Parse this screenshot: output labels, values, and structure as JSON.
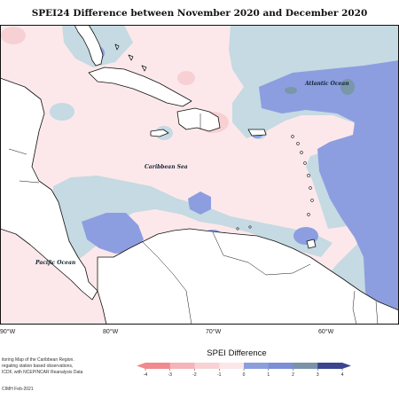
{
  "title": "SPEI24 Difference between November 2020 and December 2020",
  "map": {
    "labels": {
      "atlantic": "Atlantic Ocean",
      "caribbean": "Caribbean Sea",
      "pacific": "Pacific Ocean"
    },
    "longitude_ticks": [
      "90°W",
      "80°W",
      "70°W",
      "60°W"
    ]
  },
  "credits": {
    "line1": "itoring Map of the Caribbean Region.",
    "line2": "regating station based observations,",
    "line3": "ICDF, with NCEP/NCAR Reanalysis Data",
    "line4": "CIMH Feb-2021"
  },
  "legend": {
    "title": "SPEI Difference",
    "ticks": [
      "-4",
      "-3",
      "-2",
      "-1",
      "0",
      "1",
      "2",
      "3",
      "4"
    ],
    "colors": [
      "#f08a8e",
      "#f4b4b8",
      "#f8d2d5",
      "#fbe6e8",
      "#c9dde4",
      "#8b9fdc",
      "#7b8fd6",
      "#7a93a8",
      "#3b4590"
    ]
  },
  "colors": {
    "pink_light": "#fce8ea",
    "pink_med": "#f7d0d4",
    "blue_light": "#c5dae2",
    "blue_med": "#8c9ee0",
    "blue_teal": "#7897a9",
    "land": "#ffffff"
  }
}
